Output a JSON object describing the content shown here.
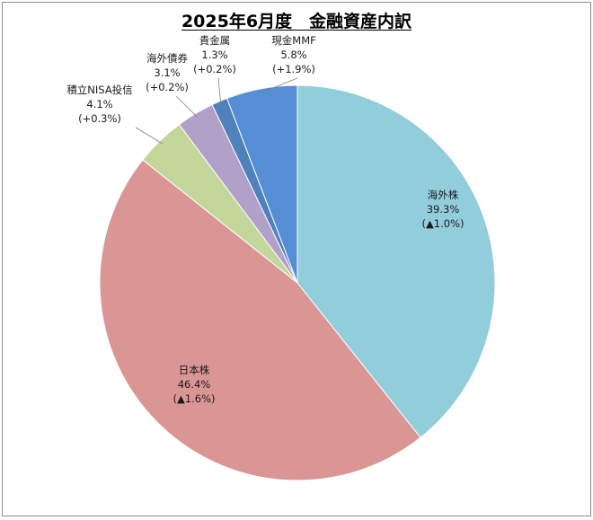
{
  "chart_data": {
    "type": "pie",
    "title": "2025年6月度　金融資産内訳",
    "slices": [
      {
        "name": "海外株",
        "pct_label": "39.3%",
        "change_label": "(▲1.0%)",
        "value": 39.3,
        "color": "#92CDDC"
      },
      {
        "name": "日本株",
        "pct_label": "46.4%",
        "change_label": "(▲1.6%)",
        "value": 46.4,
        "color": "#DA9694"
      },
      {
        "name": "積立NISA投信",
        "pct_label": "4.1%",
        "change_label": "(+0.3%)",
        "value": 4.1,
        "color": "#C4D79B"
      },
      {
        "name": "海外債券",
        "pct_label": "3.1%",
        "change_label": "(+0.2%)",
        "value": 3.1,
        "color": "#B1A0C7"
      },
      {
        "name": "貴金属",
        "pct_label": "1.3%",
        "change_label": "(+0.2%)",
        "value": 1.3,
        "color": "#4F81BD"
      },
      {
        "name": "現金MMF",
        "pct_label": "5.8%",
        "change_label": "(+1.9%)",
        "value": 5.8,
        "color": "#558ED5"
      }
    ]
  }
}
